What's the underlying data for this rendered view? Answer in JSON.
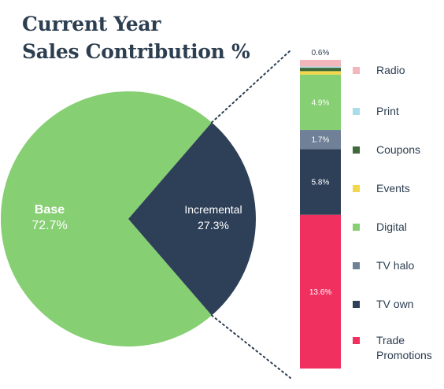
{
  "title": {
    "line1": "Current Year",
    "line2": "Sales Contribution %"
  },
  "chart_data": [
    {
      "type": "pie",
      "slices": [
        {
          "name": "Base",
          "value": 72.7,
          "value_label": "72.7%",
          "color": "#86cf72"
        },
        {
          "name": "Incremental",
          "value": 27.3,
          "value_label": "27.3%",
          "color": "#2e4058"
        }
      ]
    },
    {
      "type": "bar",
      "stacked": true,
      "series": [
        {
          "name": "Trade Promotions",
          "value": 13.6,
          "value_label": "13.6%",
          "color": "#f0305f",
          "label_color": "#ffffff"
        },
        {
          "name": "TV own",
          "value": 5.8,
          "value_label": "5.8%",
          "color": "#2e4058",
          "label_color": "#ffffff"
        },
        {
          "name": "TV halo",
          "value": 1.7,
          "value_label": "1.7%",
          "color": "#6f8097",
          "label_color": "#ffffff"
        },
        {
          "name": "Digital",
          "value": 4.9,
          "value_label": "4.9%",
          "color": "#86cf72",
          "label_color": "#ffffff"
        },
        {
          "name": "Events",
          "value": 0.3,
          "value_label": "",
          "color": "#f2d64b",
          "label_color": "#ffffff"
        },
        {
          "name": "Coupons",
          "value": 0.3,
          "value_label": "",
          "color": "#3f6b3a",
          "label_color": "#ffffff"
        },
        {
          "name": "Print",
          "value": 0.1,
          "value_label": "",
          "color": "#a9dde8",
          "label_color": "#ffffff"
        },
        {
          "name": "Radio",
          "value": 0.6,
          "value_label": "0.6%",
          "color": "#f1b7bd",
          "label_color": "#2c3e50"
        }
      ]
    }
  ],
  "legend": [
    {
      "label": "Radio",
      "color": "#f1b7bd"
    },
    {
      "label": "Print",
      "color": "#a9dde8"
    },
    {
      "label": "Coupons",
      "color": "#3f6b3a"
    },
    {
      "label": "Events",
      "color": "#f2d64b"
    },
    {
      "label": "Digital",
      "color": "#86cf72"
    },
    {
      "label": "TV halo",
      "color": "#6f8097"
    },
    {
      "label": "TV own",
      "color": "#2e4058"
    },
    {
      "label": "Trade Promotions",
      "color": "#f0305f"
    }
  ]
}
